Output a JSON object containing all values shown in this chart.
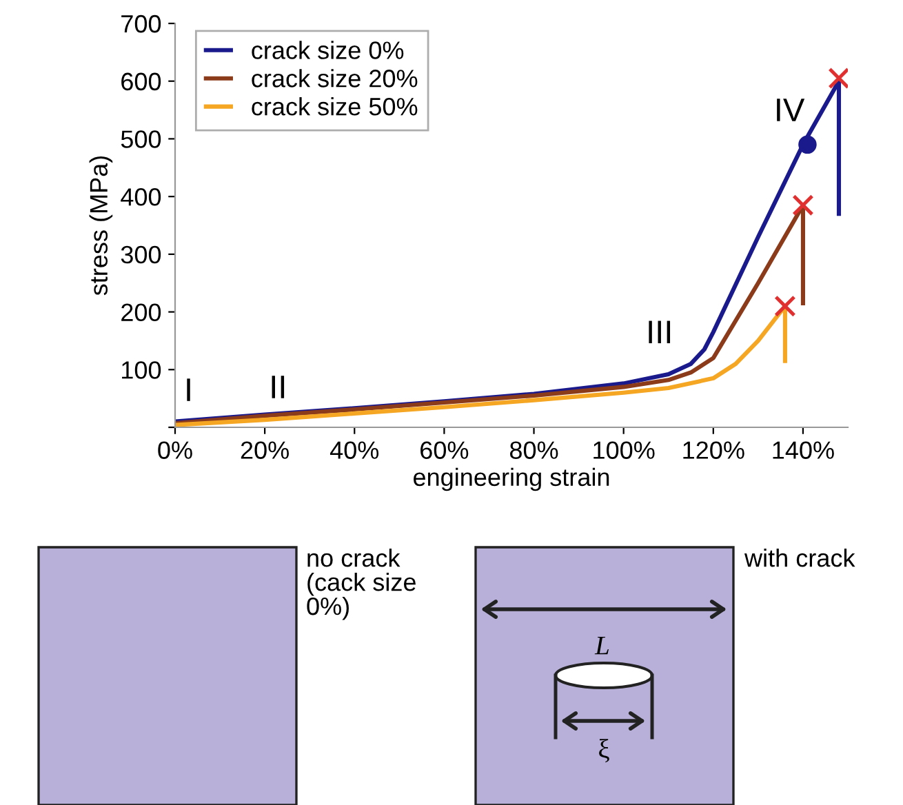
{
  "chart_data": {
    "type": "line",
    "xlabel": "engineering strain",
    "ylabel": "stress (MPa)",
    "xlim": [
      0,
      150
    ],
    "ylim": [
      0,
      700
    ],
    "xticks": [
      {
        "value": 0,
        "label": "0%"
      },
      {
        "value": 20,
        "label": "20%"
      },
      {
        "value": 40,
        "label": "40%"
      },
      {
        "value": 60,
        "label": "60%"
      },
      {
        "value": 80,
        "label": "80%"
      },
      {
        "value": 100,
        "label": "100%"
      },
      {
        "value": 120,
        "label": "120%"
      },
      {
        "value": 140,
        "label": "140%"
      }
    ],
    "yticks": [
      {
        "value": 0,
        "label": null
      },
      100,
      200,
      300,
      400,
      500,
      600,
      700
    ],
    "grid": false,
    "legend": "top left",
    "series": [
      {
        "name": "crack size 0%",
        "color": "#1a1a8c",
        "x": [
          0,
          20,
          40,
          60,
          80,
          100,
          110,
          115,
          118,
          120,
          130,
          140,
          148,
          148
        ],
        "values": [
          10,
          22,
          33,
          45,
          58,
          76,
          92,
          110,
          135,
          165,
          330,
          490,
          600,
          370
        ]
      },
      {
        "name": "crack size 20%",
        "color": "#8b3a1a",
        "x": [
          0,
          20,
          40,
          60,
          80,
          100,
          110,
          115,
          120,
          130,
          140,
          140
        ],
        "values": [
          7,
          20,
          31,
          43,
          55,
          70,
          82,
          95,
          120,
          250,
          385,
          215
        ]
      },
      {
        "name": "crack size 50%",
        "color": "#f5a623",
        "x": [
          0,
          20,
          40,
          60,
          80,
          100,
          110,
          120,
          125,
          130,
          136,
          136
        ],
        "values": [
          4,
          13,
          24,
          35,
          47,
          60,
          68,
          85,
          110,
          150,
          210,
          115
        ]
      },
      {
        "type": "scatter",
        "marker": "circle",
        "color": "#1a1a8c",
        "x": [
          141
        ],
        "values": [
          490
        ]
      },
      {
        "type": "scatter",
        "marker": "cross",
        "color": "#e03030",
        "x": [
          148,
          140,
          136
        ],
        "values": [
          605,
          385,
          210
        ]
      }
    ],
    "annotations": [
      "I",
      "II",
      "III",
      "IV",
      "no crack\n(cack size\n0%)",
      "with crack",
      "L",
      "ξ"
    ]
  }
}
